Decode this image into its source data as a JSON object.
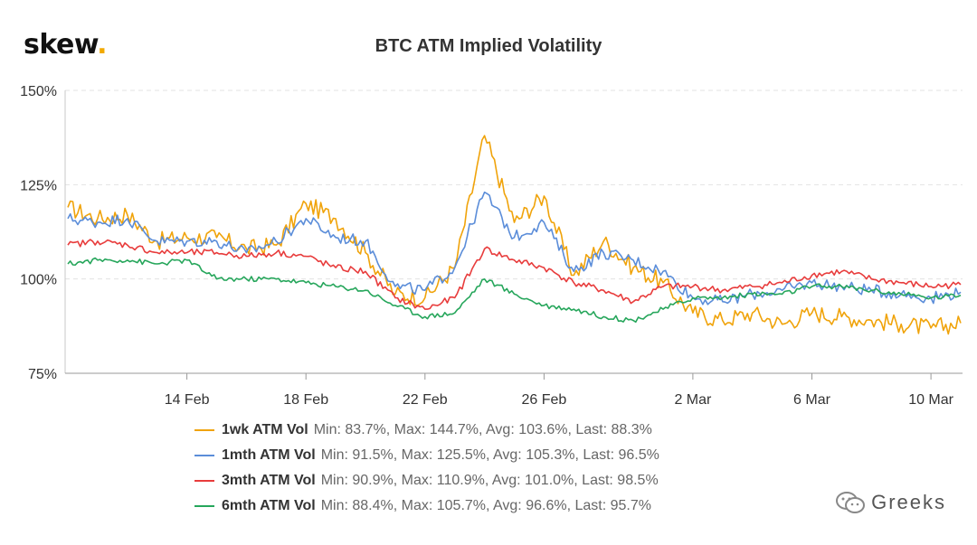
{
  "logo": {
    "text": "skew",
    "dot": "."
  },
  "title": "BTC ATM Implied Volatility",
  "watermark": "Greeks",
  "chart_data": {
    "type": "line",
    "title": "BTC ATM Implied Volatility",
    "xlabel": "",
    "ylabel": "",
    "ylim": [
      75,
      150
    ],
    "y_ticks": [
      75,
      100,
      125,
      150
    ],
    "y_tick_labels": [
      "75%",
      "100%",
      "125%",
      "150%"
    ],
    "x_ticks": [
      "14 Feb",
      "18 Feb",
      "22 Feb",
      "26 Feb",
      "2 Mar",
      "6 Mar",
      "10 Mar"
    ],
    "x": [
      "10 Feb",
      "11 Feb",
      "12 Feb",
      "13 Feb",
      "14 Feb",
      "15 Feb",
      "16 Feb",
      "17 Feb",
      "18 Feb",
      "19 Feb",
      "20 Feb",
      "21 Feb",
      "22 Feb",
      "23 Feb",
      "24 Feb",
      "25 Feb",
      "26 Feb",
      "27 Feb",
      "28 Feb",
      "29 Feb",
      "1 Mar",
      "2 Mar",
      "3 Mar",
      "4 Mar",
      "5 Mar",
      "6 Mar",
      "7 Mar",
      "8 Mar",
      "9 Mar",
      "10 Mar",
      "11 Mar"
    ],
    "grid": true,
    "legend_position": "bottom",
    "series": [
      {
        "name": "1wk ATM Vol",
        "color": "#f0a30a",
        "stats": "Min: 83.7%, Max: 144.7%, Avg: 103.6%, Last: 88.3%",
        "values": [
          119,
          116,
          117,
          110,
          111,
          111,
          108,
          109,
          120,
          116,
          107,
          96,
          95,
          103,
          138,
          115,
          122,
          101,
          110,
          103,
          99,
          91,
          89,
          91,
          88,
          91,
          90,
          89,
          88,
          87,
          88.3
        ]
      },
      {
        "name": "1mth ATM Vol",
        "color": "#5b8dd9",
        "stats": "Min: 91.5%, Max: 125.5%, Avg: 105.3%, Last: 96.5%",
        "values": [
          116,
          115,
          116,
          110,
          110,
          110,
          107,
          110,
          116,
          111,
          110,
          98,
          97,
          103,
          123,
          111,
          115,
          102,
          107,
          105,
          102,
          95,
          94,
          96,
          97,
          99,
          98,
          97,
          96,
          95,
          96.5
        ]
      },
      {
        "name": "3mth ATM Vol",
        "color": "#e83c3c",
        "stats": "Min: 90.9%, Max: 110.9%, Avg: 101.0%, Last: 98.5%",
        "values": [
          109,
          110,
          109,
          107,
          107,
          107,
          106,
          107,
          106,
          103,
          102,
          95,
          92,
          95,
          108,
          105,
          103,
          99,
          97,
          94,
          98,
          98,
          97,
          98,
          99,
          101,
          102,
          100,
          99,
          98,
          98.5
        ]
      },
      {
        "name": "6mth ATM Vol",
        "color": "#26a65b",
        "stats": "Min: 88.4%, Max: 105.7%, Avg: 96.6%, Last: 95.7%",
        "values": [
          104,
          105,
          105,
          104,
          105,
          100,
          100,
          100,
          99,
          98,
          97,
          93,
          90,
          91,
          100,
          96,
          93,
          92,
          90,
          89,
          92,
          95,
          95,
          96,
          96,
          98,
          98,
          97,
          96,
          95,
          95.7
        ]
      }
    ]
  }
}
